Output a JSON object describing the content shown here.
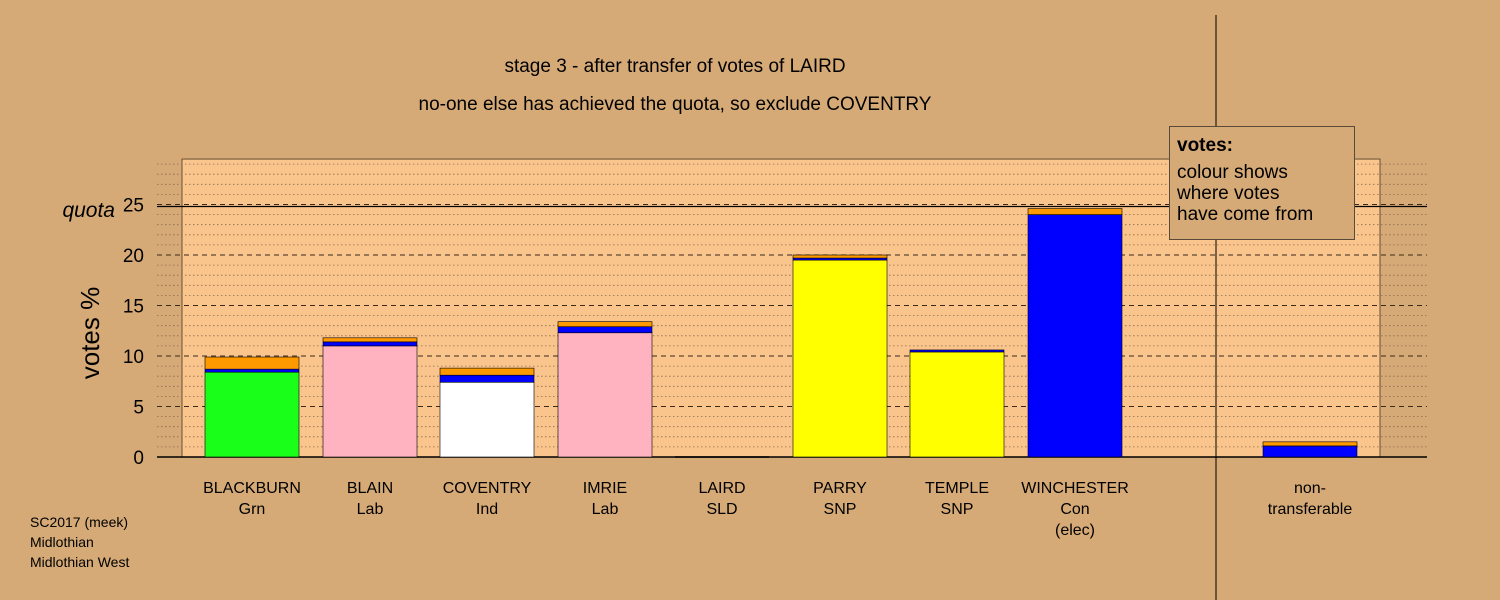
{
  "chart_data": {
    "type": "bar",
    "title": "stage 3 - after transfer of votes of LAIRD",
    "subtitle": "no-one else has achieved the quota, so exclude COVENTRY",
    "ylabel": "votes %",
    "ylim": [
      0,
      29.5
    ],
    "yticks": [
      "0",
      "5",
      "10",
      "15",
      "20",
      "25"
    ],
    "quota": 24.8,
    "quota_label": "quota",
    "categories": [
      {
        "name": "BLACKBURN",
        "party": "Grn",
        "note": ""
      },
      {
        "name": "BLAIN",
        "party": "Lab",
        "note": ""
      },
      {
        "name": "COVENTRY",
        "party": "Ind",
        "note": ""
      },
      {
        "name": "IMRIE",
        "party": "Lab",
        "note": ""
      },
      {
        "name": "LAIRD",
        "party": "SLD",
        "note": ""
      },
      {
        "name": "PARRY",
        "party": "SNP",
        "note": ""
      },
      {
        "name": "TEMPLE",
        "party": "SNP",
        "note": ""
      },
      {
        "name": "WINCHESTER",
        "party": "Con",
        "note": "(elec)"
      }
    ],
    "nontransferable": {
      "line1": "non-",
      "line2": "transferable"
    },
    "stacks": [
      [
        {
          "value": 8.4,
          "color": "#1aff1a"
        },
        {
          "value": 0.3,
          "color": "#0000ff"
        },
        {
          "value": 1.2,
          "color": "#ff9900"
        }
      ],
      [
        {
          "value": 11.0,
          "color": "#ffb3c1"
        },
        {
          "value": 0.4,
          "color": "#0000ff"
        },
        {
          "value": 0.4,
          "color": "#ff9900"
        }
      ],
      [
        {
          "value": 7.4,
          "color": "#ffffff"
        },
        {
          "value": 0.7,
          "color": "#0000ff"
        },
        {
          "value": 0.7,
          "color": "#ff9900"
        }
      ],
      [
        {
          "value": 12.3,
          "color": "#ffb3c1"
        },
        {
          "value": 0.6,
          "color": "#0000ff"
        },
        {
          "value": 0.5,
          "color": "#ff9900"
        }
      ],
      [],
      [
        {
          "value": 19.5,
          "color": "#ffff00"
        },
        {
          "value": 0.2,
          "color": "#0000ff"
        },
        {
          "value": 0.3,
          "color": "#ff9900"
        }
      ],
      [
        {
          "value": 10.4,
          "color": "#ffff00"
        },
        {
          "value": 0.2,
          "color": "#0000ff"
        }
      ],
      [
        {
          "value": 24.0,
          "color": "#0000ff"
        },
        {
          "value": 0.6,
          "color": "#ff9900"
        }
      ],
      [
        {
          "value": 1.1,
          "color": "#0000ff"
        },
        {
          "value": 0.4,
          "color": "#ff9900"
        }
      ]
    ],
    "grid": true,
    "legend_placement": "top-right"
  },
  "legend": {
    "title": "votes:",
    "line1": "colour shows",
    "line2": "where votes",
    "line3": "have come from"
  },
  "footer": {
    "line1": "SC2017 (meek)",
    "line2": "Midlothian",
    "line3": "Midlothian West"
  },
  "colors": {
    "background": "#d5aa77",
    "plot_area": "#fac48d"
  }
}
